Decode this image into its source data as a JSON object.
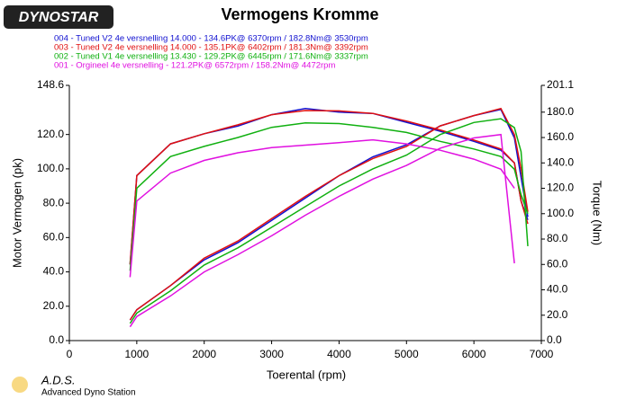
{
  "chart_data": {
    "type": "line",
    "title": "Vermogens Kromme",
    "logo": "DYNOSTAR",
    "footer_title": "A.D.S.",
    "footer_subtitle": "Advanced Dyno Station",
    "xlabel": "Toerental (rpm)",
    "ylabel": "Motor Vermogen (pk)",
    "y2label": "Torque (Nm)",
    "x": [
      900,
      1000,
      1500,
      2000,
      2500,
      3000,
      3500,
      4000,
      4500,
      5000,
      5500,
      6000,
      6400,
      6600,
      6700,
      6800
    ],
    "xlim": [
      0,
      7000
    ],
    "xticks": [
      0,
      1000,
      2000,
      3000,
      4000,
      5000,
      6000,
      7000
    ],
    "ylim": [
      0,
      148.6
    ],
    "yticks": [
      {
        "value": 0,
        "label": "0.0"
      },
      {
        "value": 20,
        "label": "20.0"
      },
      {
        "value": 40,
        "label": "40.0"
      },
      {
        "value": 60,
        "label": "60.0"
      },
      {
        "value": 80,
        "label": "80.0"
      },
      {
        "value": 100,
        "label": "100.0"
      },
      {
        "value": 120,
        "label": "120.0"
      },
      148.6
    ],
    "y2lim": [
      0,
      201.1
    ],
    "y2ticks": [
      {
        "value": 0,
        "label": "0.0"
      },
      {
        "value": 20,
        "label": "20.0"
      },
      {
        "value": 40,
        "label": "40.0"
      },
      {
        "value": 60,
        "label": "60.0"
      },
      {
        "value": 80,
        "label": "80.0"
      },
      {
        "value": 100,
        "label": "100.0"
      },
      {
        "value": 120,
        "label": "120.0"
      },
      {
        "value": 140,
        "label": "140.0"
      },
      {
        "value": 160,
        "label": "160.0"
      },
      {
        "value": 180,
        "label": "180.0"
      },
      201.1
    ],
    "series": [
      {
        "name": "004 - Tuned V2 4e versnelling 14.000   - 134.6PK@ 6370rpm / 182.8Nm@ 3530rpm",
        "color": "#1010d0",
        "values": [
          12,
          18,
          32,
          47,
          57,
          70,
          83,
          96,
          107,
          114,
          125,
          131,
          134.6,
          118,
          95,
          72
        ],
        "values_y2": [
          60,
          130,
          155,
          163,
          169,
          178,
          182.8,
          180,
          179,
          172,
          165,
          157,
          150,
          140,
          110,
          95
        ]
      },
      {
        "name": "003 - Tuned V2 4e versnelling 14.000   - 135.1PK@ 6402rpm / 181.3Nm@ 3392rpm",
        "color": "#e01010",
        "values": [
          12,
          18,
          32,
          48,
          58,
          71,
          84,
          96,
          106,
          113,
          125,
          131,
          135.1,
          120,
          100,
          75
        ],
        "values_y2": [
          60,
          130,
          155,
          163,
          170,
          178,
          181.3,
          181,
          179,
          173,
          166,
          158,
          151,
          140,
          110,
          92
        ]
      },
      {
        "name": "002 - Tuned V1 4e versnelling 13.430   - 129.2PK@ 6445rpm / 171.6Nm@ 3337rpm",
        "color": "#10b010",
        "values": [
          10,
          16,
          29,
          44,
          54,
          66,
          78,
          90,
          100,
          108,
          120,
          127,
          129.2,
          124,
          110,
          55
        ],
        "values_y2": [
          55,
          120,
          145,
          153,
          160,
          168,
          171.6,
          171,
          168,
          164,
          157,
          151,
          145,
          135,
          115,
          100
        ]
      },
      {
        "name": "001 - Orgineel 4e versnelling  - 121.2PK@ 6572rpm / 158.2Nm@ 4472rpm",
        "color": "#e010e0",
        "values": [
          8,
          14,
          26,
          40,
          50,
          61,
          73,
          84,
          94,
          102,
          112,
          118,
          120,
          45,
          null,
          null
        ],
        "values_y2": [
          50,
          110,
          132,
          142,
          148,
          152,
          154,
          156,
          158.2,
          155,
          150,
          143,
          135,
          120,
          null,
          null
        ]
      }
    ]
  }
}
